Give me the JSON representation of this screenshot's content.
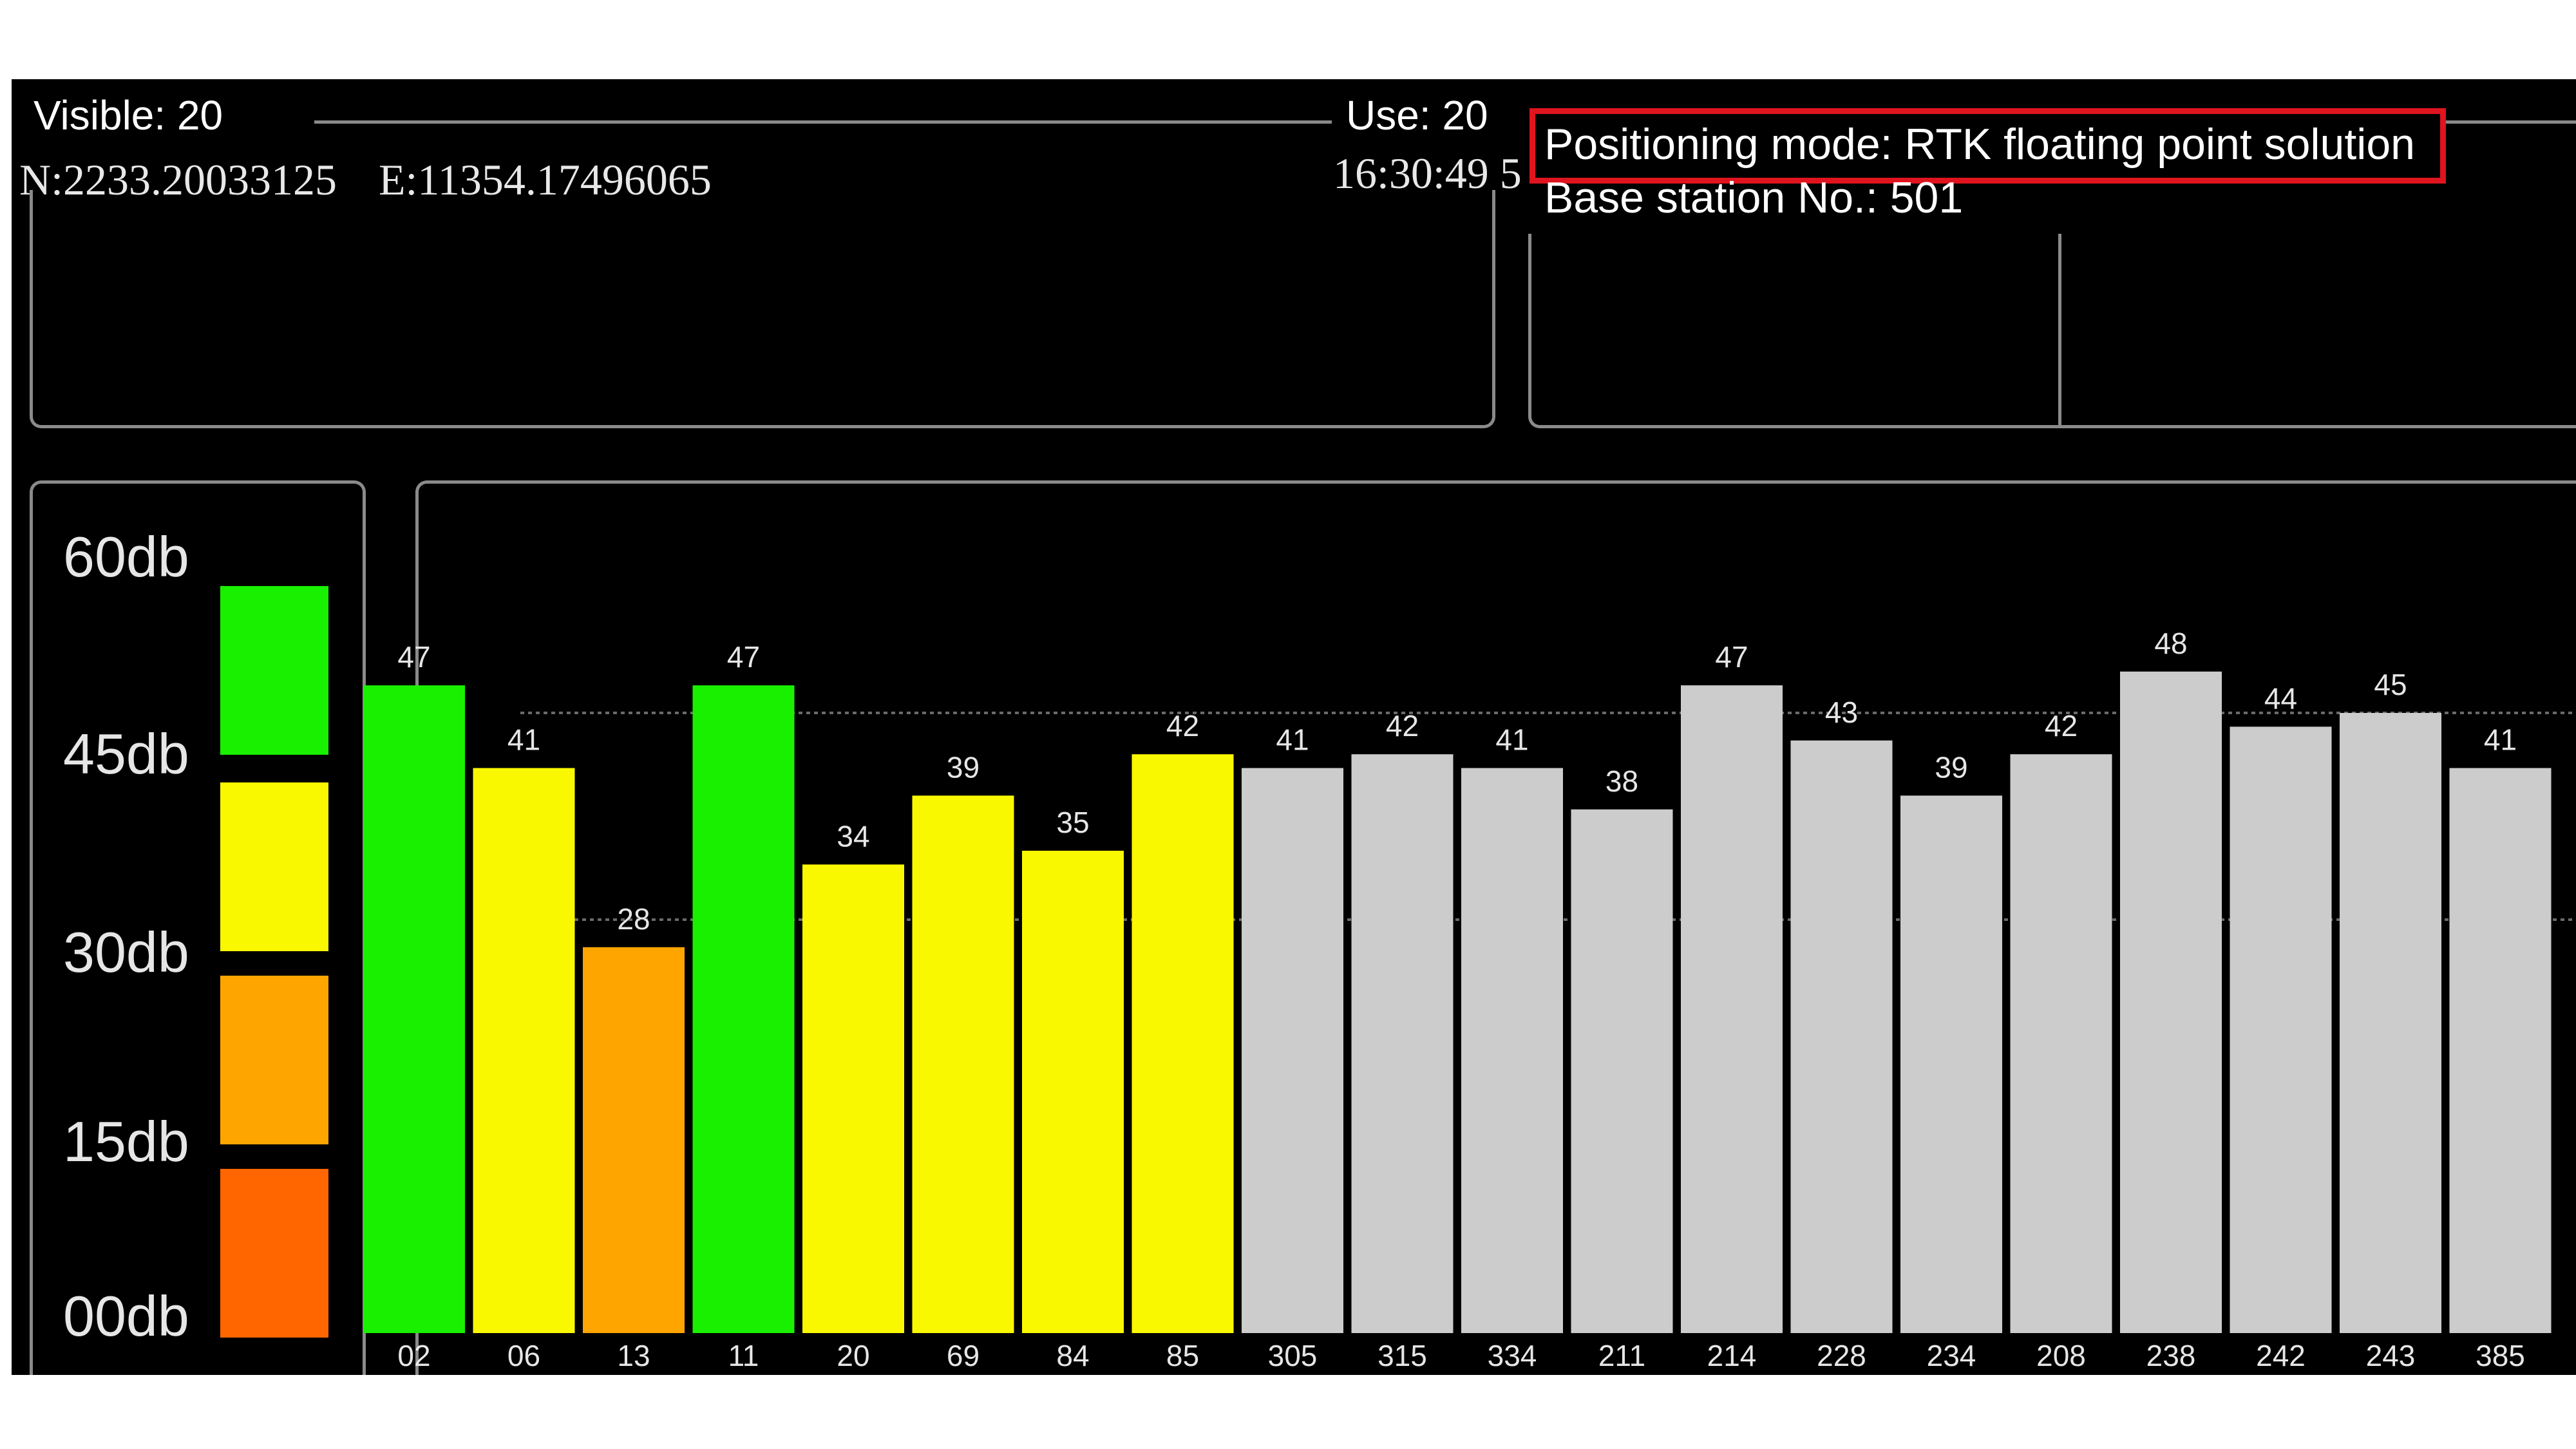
{
  "status": {
    "visible": "Visible: 20",
    "use": "Use: 20",
    "coords_n": "N:2233.20033125",
    "coords_e": "E:11354.17496065",
    "time": "16:30:49 5",
    "positioning_mode": "Positioning mode: RTK floating point solution",
    "base_station": "Base station No.: 501"
  },
  "legend": {
    "labels": [
      "60db",
      "45db",
      "30db",
      "15db",
      "00db"
    ],
    "colors": [
      "#19f000",
      "#faf800",
      "#ffa500",
      "#ff6600"
    ]
  },
  "colors": {
    "highlight_box": "#e0141e",
    "grey_bar": "#cccccc"
  },
  "chart_data": {
    "type": "bar",
    "categories": [
      "02",
      "06",
      "13",
      "11",
      "20",
      "69",
      "84",
      "85",
      "305",
      "315",
      "334",
      "211",
      "214",
      "228",
      "234",
      "208",
      "238",
      "242",
      "243",
      "385"
    ],
    "values": [
      47,
      41,
      28,
      47,
      34,
      39,
      35,
      42,
      41,
      42,
      41,
      38,
      47,
      43,
      39,
      42,
      48,
      44,
      45,
      41
    ],
    "bar_colors": [
      "#19f000",
      "#faf800",
      "#ffa500",
      "#19f000",
      "#faf800",
      "#faf800",
      "#faf800",
      "#faf800",
      "#cccccc",
      "#cccccc",
      "#cccccc",
      "#cccccc",
      "#cccccc",
      "#cccccc",
      "#cccccc",
      "#cccccc",
      "#cccccc",
      "#cccccc",
      "#cccccc",
      "#cccccc"
    ],
    "ylim": [
      0,
      60
    ],
    "ylabel_ticks": [
      "00db",
      "15db",
      "30db",
      "45db",
      "60db"
    ],
    "grid": true
  }
}
